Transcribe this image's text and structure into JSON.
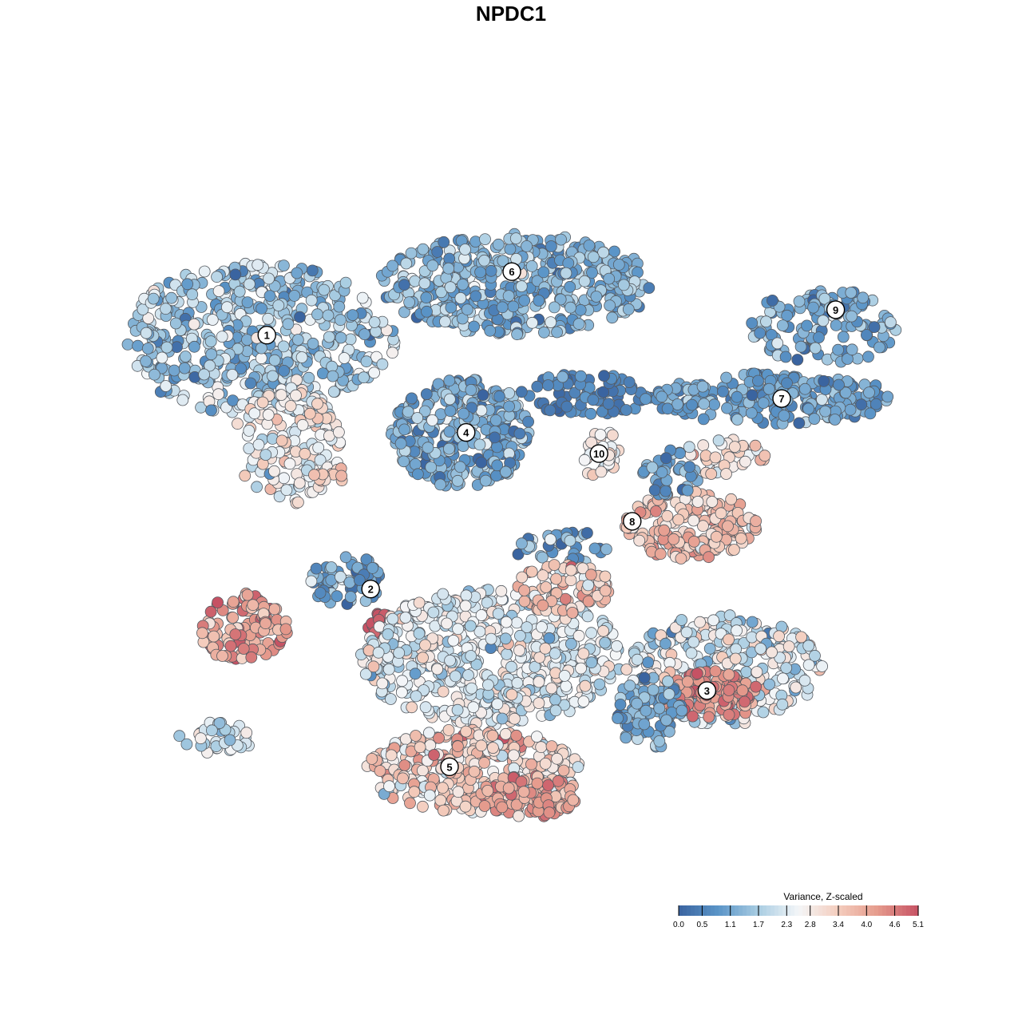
{
  "chart_data": {
    "type": "scatter",
    "title": "NPDC1",
    "xlabel": "",
    "ylabel": "",
    "grid": false,
    "legend_position": "bottom-right",
    "colorbar": {
      "title": "Variance, Z-scaled",
      "ticks": [
        "0.0",
        "0.5",
        "1.1",
        "1.7",
        "2.3",
        "2.8",
        "3.4",
        "4.0",
        "4.6",
        "5.1"
      ],
      "range": [
        0.0,
        5.1
      ],
      "palette": [
        "#3a64a0",
        "#5b95c8",
        "#a9cde2",
        "#f4f6f8",
        "#f4cdbd",
        "#e59a8c",
        "#c65264"
      ]
    },
    "clusters": [
      {
        "label": "1",
        "x": -5.4,
        "y": 5.1
      },
      {
        "label": "2",
        "x": -2.9,
        "y": -0.9
      },
      {
        "label": "3",
        "x": 5.2,
        "y": -3.3
      },
      {
        "label": "4",
        "x": -0.6,
        "y": 2.8
      },
      {
        "label": "5",
        "x": -1.0,
        "y": -5.1
      },
      {
        "label": "6",
        "x": 0.5,
        "y": 6.6
      },
      {
        "label": "7",
        "x": 7.0,
        "y": 3.6
      },
      {
        "label": "8",
        "x": 3.4,
        "y": 0.7
      },
      {
        "label": "9",
        "x": 8.3,
        "y": 5.7
      },
      {
        "label": "10",
        "x": 2.6,
        "y": 2.3
      }
    ],
    "regions": [
      {
        "cluster": "1",
        "cx": -5.6,
        "cy": 5.0,
        "rx": 3.3,
        "ry": 1.8,
        "n": 520,
        "mean": 1.6,
        "sd": 0.6
      },
      {
        "cluster": "1",
        "cx": -4.9,
        "cy": 2.5,
        "rx": 1.3,
        "ry": 1.4,
        "n": 150,
        "mean": 2.7,
        "sd": 0.5
      },
      {
        "cluster": "1",
        "cx": -4.0,
        "cy": 1.8,
        "rx": 0.5,
        "ry": 0.25,
        "n": 14,
        "mean": 3.4,
        "sd": 0.3
      },
      {
        "cluster": "6",
        "cx": 0.6,
        "cy": 6.3,
        "rx": 3.3,
        "ry": 1.2,
        "n": 430,
        "mean": 1.3,
        "sd": 0.5
      },
      {
        "cluster": "4",
        "cx": -0.7,
        "cy": 2.8,
        "rx": 1.7,
        "ry": 1.3,
        "n": 300,
        "mean": 1.2,
        "sd": 0.5
      },
      {
        "cluster": "4",
        "cx": 2.3,
        "cy": 3.7,
        "rx": 1.6,
        "ry": 0.5,
        "n": 80,
        "mean": 0.5,
        "sd": 0.3
      },
      {
        "cluster": "10",
        "cx": 2.6,
        "cy": 2.3,
        "rx": 0.5,
        "ry": 0.6,
        "n": 35,
        "mean": 3.0,
        "sd": 0.4
      },
      {
        "cluster": "9",
        "cx": 8.0,
        "cy": 5.3,
        "rx": 1.8,
        "ry": 0.9,
        "n": 140,
        "mean": 1.1,
        "sd": 0.5
      },
      {
        "cluster": "7",
        "cx": 6.8,
        "cy": 3.6,
        "rx": 2.9,
        "ry": 0.6,
        "n": 230,
        "mean": 1.0,
        "sd": 0.4
      },
      {
        "cluster": "7",
        "cx": 5.6,
        "cy": 2.2,
        "rx": 1.0,
        "ry": 0.5,
        "n": 40,
        "mean": 3.0,
        "sd": 0.5
      },
      {
        "cluster": "8",
        "cx": 4.8,
        "cy": 0.6,
        "rx": 1.6,
        "ry": 0.8,
        "n": 160,
        "mean": 3.6,
        "sd": 0.5
      },
      {
        "cluster": "8",
        "cx": 4.3,
        "cy": 1.8,
        "rx": 0.7,
        "ry": 0.6,
        "n": 40,
        "mean": 1.0,
        "sd": 0.4
      },
      {
        "cluster": "8",
        "cx": 1.8,
        "cy": 0.0,
        "rx": 1.2,
        "ry": 0.5,
        "n": 40,
        "mean": 1.3,
        "sd": 0.6
      },
      {
        "cluster": "2",
        "cx": -6.0,
        "cy": -1.8,
        "rx": 1.1,
        "ry": 0.8,
        "n": 110,
        "mean": 4.2,
        "sd": 0.6
      },
      {
        "cluster": "2",
        "cx": -3.5,
        "cy": -0.7,
        "rx": 0.9,
        "ry": 0.6,
        "n": 60,
        "mean": 1.0,
        "sd": 0.5
      },
      {
        "cluster": "2",
        "cx": -2.7,
        "cy": -1.7,
        "rx": 0.3,
        "ry": 0.25,
        "n": 25,
        "mean": 5.0,
        "sd": 0.15
      },
      {
        "cluster": "2",
        "cx": -6.6,
        "cy": -4.4,
        "rx": 1.0,
        "ry": 0.4,
        "n": 35,
        "mean": 2.0,
        "sd": 0.5
      },
      {
        "cluster": "5",
        "cx": 0.0,
        "cy": -2.5,
        "rx": 3.2,
        "ry": 1.6,
        "n": 560,
        "mean": 2.3,
        "sd": 0.5
      },
      {
        "cluster": "5",
        "cx": 1.8,
        "cy": -0.9,
        "rx": 1.2,
        "ry": 0.6,
        "n": 80,
        "mean": 3.5,
        "sd": 0.5
      },
      {
        "cluster": "5",
        "cx": -0.4,
        "cy": -5.2,
        "rx": 2.6,
        "ry": 1.0,
        "n": 320,
        "mean": 3.3,
        "sd": 0.6
      },
      {
        "cluster": "5",
        "cx": 0.9,
        "cy": -5.8,
        "rx": 1.2,
        "ry": 0.5,
        "n": 100,
        "mean": 4.2,
        "sd": 0.4
      },
      {
        "cluster": "3",
        "cx": 5.6,
        "cy": -2.8,
        "rx": 2.4,
        "ry": 1.3,
        "n": 300,
        "mean": 2.2,
        "sd": 0.7
      },
      {
        "cluster": "3",
        "cx": 5.3,
        "cy": -3.4,
        "rx": 1.2,
        "ry": 0.6,
        "n": 110,
        "mean": 4.3,
        "sd": 0.4
      },
      {
        "cluster": "3",
        "cx": 3.8,
        "cy": -3.8,
        "rx": 0.8,
        "ry": 0.9,
        "n": 80,
        "mean": 1.0,
        "sd": 0.4
      }
    ]
  }
}
